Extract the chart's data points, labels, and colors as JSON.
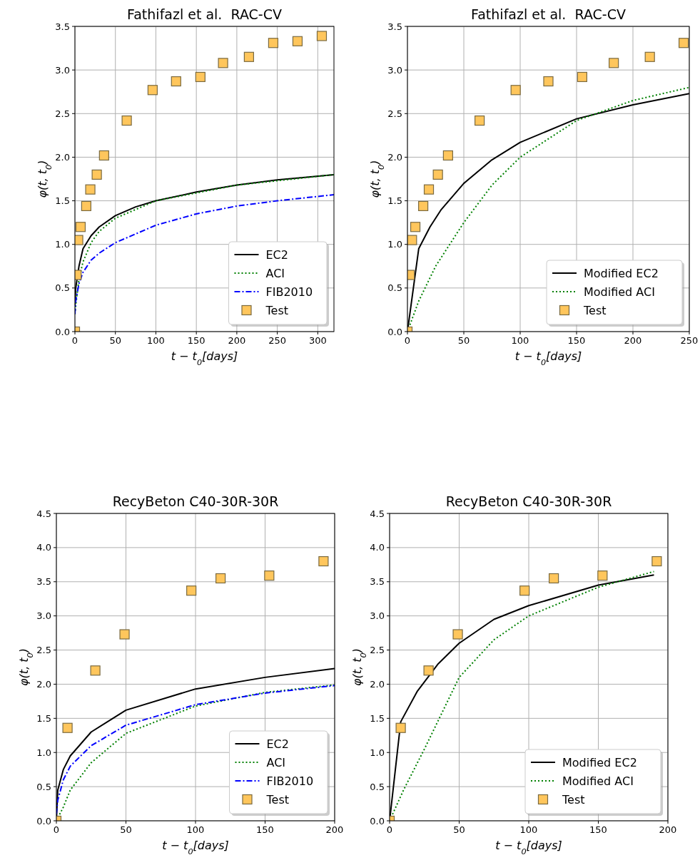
{
  "chart_data": [
    {
      "type": "line",
      "title": "Fathifazl et al.  RAC-CV",
      "xlabel": "t − t$_{0}$[days]",
      "ylabel": "φ(t, t$_{0}$)",
      "xlim": [
        0,
        320
      ],
      "xticks": [
        0,
        50,
        100,
        150,
        200,
        250,
        300
      ],
      "ylim": [
        0,
        3.5
      ],
      "yticks": [
        {
          "value": 0,
          "label": "0.0"
        },
        {
          "value": 0.5,
          "label": "0.5"
        },
        {
          "value": 1,
          "label": "1.0"
        },
        {
          "value": 1.5,
          "label": "1.5"
        },
        {
          "value": 2,
          "label": "2.0"
        },
        {
          "value": 2.5,
          "label": "2.5"
        },
        {
          "value": 3,
          "label": "3.0"
        },
        {
          "value": 3.5,
          "label": "3.5"
        }
      ],
      "grid": true,
      "legend": "bottom right",
      "series": [
        {
          "name": "EC2",
          "type": "line",
          "color": "#000000",
          "line_style": "solid",
          "marker": "none",
          "x": [
            0,
            1,
            5,
            10,
            20,
            30,
            50,
            75,
            100,
            150,
            200,
            250,
            320
          ],
          "values": [
            0.3,
            0.5,
            0.75,
            0.95,
            1.1,
            1.2,
            1.33,
            1.43,
            1.5,
            1.6,
            1.68,
            1.74,
            1.8
          ]
        },
        {
          "name": "ACI",
          "type": "line",
          "color": "#008000",
          "line_style": "dotted",
          "marker": "none",
          "x": [
            0,
            1,
            5,
            10,
            20,
            30,
            50,
            100,
            200,
            320
          ],
          "values": [
            0.2,
            0.3,
            0.6,
            0.8,
            1.02,
            1.15,
            1.3,
            1.5,
            1.68,
            1.8
          ]
        },
        {
          "name": "FIB2010",
          "type": "line",
          "color": "#0000ff",
          "line_style": "dashdot",
          "marker": "none",
          "x": [
            0,
            1,
            5,
            10,
            20,
            30,
            50,
            100,
            150,
            200,
            250,
            320
          ],
          "values": [
            0.2,
            0.35,
            0.55,
            0.68,
            0.82,
            0.9,
            1.02,
            1.22,
            1.35,
            1.44,
            1.5,
            1.57
          ]
        },
        {
          "name": "Test",
          "type": "scatter",
          "color": "#ffc65c",
          "marker": "square",
          "x": [
            0,
            2,
            4,
            7,
            14,
            19,
            27,
            36,
            64,
            96,
            125,
            155,
            183,
            215,
            245,
            275,
            305
          ],
          "values": [
            0,
            0.65,
            1.05,
            1.2,
            1.44,
            1.63,
            1.8,
            2.02,
            2.42,
            2.77,
            2.87,
            2.92,
            3.08,
            3.15,
            3.31,
            3.33,
            3.39
          ]
        }
      ]
    },
    {
      "type": "line",
      "title": "Fathifazl et al.  RAC-CV",
      "xlabel": "t − t$_{0}$[days]",
      "ylabel": "φ(t, t$_{0}$)",
      "xlim": [
        0,
        250
      ],
      "xticks": [
        0,
        50,
        100,
        150,
        200,
        250
      ],
      "ylim": [
        0,
        3.5
      ],
      "yticks": [
        {
          "value": 0,
          "label": "0.0"
        },
        {
          "value": 0.5,
          "label": "0.5"
        },
        {
          "value": 1,
          "label": "1.0"
        },
        {
          "value": 1.5,
          "label": "1.5"
        },
        {
          "value": 2,
          "label": "2.0"
        },
        {
          "value": 2.5,
          "label": "2.5"
        },
        {
          "value": 3,
          "label": "3.0"
        },
        {
          "value": 3.5,
          "label": "3.5"
        }
      ],
      "grid": true,
      "legend": "bottom right",
      "series": [
        {
          "name": "Modified EC2",
          "type": "line",
          "color": "#000000",
          "line_style": "solid",
          "marker": "none",
          "x": [
            0,
            10,
            20,
            30,
            50,
            75,
            100,
            150,
            200,
            250
          ],
          "values": [
            0,
            0.95,
            1.2,
            1.4,
            1.7,
            1.97,
            2.17,
            2.44,
            2.6,
            2.73
          ]
        },
        {
          "name": "Modified ACI",
          "type": "line",
          "color": "#008000",
          "line_style": "dotted",
          "marker": "none",
          "x": [
            0,
            10,
            25,
            50,
            75,
            100,
            150,
            200,
            250
          ],
          "values": [
            0,
            0.35,
            0.75,
            1.25,
            1.68,
            2.0,
            2.42,
            2.65,
            2.8
          ]
        },
        {
          "name": "Test",
          "type": "scatter",
          "color": "#ffc65c",
          "marker": "square",
          "x": [
            0,
            2,
            4,
            7,
            14,
            19,
            27,
            36,
            64,
            96,
            125,
            155,
            183,
            215,
            245
          ],
          "values": [
            0,
            0.65,
            1.05,
            1.2,
            1.44,
            1.63,
            1.8,
            2.02,
            2.42,
            2.77,
            2.87,
            2.92,
            3.08,
            3.15,
            3.31
          ]
        }
      ]
    },
    {
      "type": "line",
      "title": "RecyBeton C40-30R-30R",
      "xlabel": "t − t$_{0}$[days]",
      "ylabel": "φ(t, t$_{0}$)",
      "xlim": [
        0,
        200
      ],
      "xticks": [
        0,
        50,
        100,
        150,
        200
      ],
      "ylim": [
        0,
        4.5
      ],
      "yticks": [
        {
          "value": 0,
          "label": "0.0"
        },
        {
          "value": 0.5,
          "label": "0.5"
        },
        {
          "value": 1,
          "label": "1.0"
        },
        {
          "value": 1.5,
          "label": "1.5"
        },
        {
          "value": 2,
          "label": "2.0"
        },
        {
          "value": 2.5,
          "label": "2.5"
        },
        {
          "value": 3,
          "label": "3.0"
        },
        {
          "value": 3.5,
          "label": "3.5"
        },
        {
          "value": 4,
          "label": "4.0"
        },
        {
          "value": 4.5,
          "label": "4.5"
        }
      ],
      "grid": true,
      "legend": "bottom right",
      "series": [
        {
          "name": "EC2",
          "type": "line",
          "color": "#000000",
          "line_style": "solid",
          "marker": "none",
          "x": [
            0,
            1,
            5,
            10,
            25,
            50,
            100,
            150,
            200
          ],
          "values": [
            0,
            0.45,
            0.75,
            0.95,
            1.3,
            1.62,
            1.93,
            2.1,
            2.23
          ]
        },
        {
          "name": "ACI",
          "type": "line",
          "color": "#008000",
          "line_style": "dotted",
          "marker": "none",
          "x": [
            0,
            5,
            10,
            25,
            50,
            100,
            150,
            200
          ],
          "values": [
            0,
            0.2,
            0.45,
            0.85,
            1.28,
            1.68,
            1.88,
            1.99
          ]
        },
        {
          "name": "FIB2010",
          "type": "line",
          "color": "#0000ff",
          "line_style": "dashdot",
          "marker": "none",
          "x": [
            0,
            1,
            5,
            10,
            25,
            50,
            100,
            150,
            200
          ],
          "values": [
            0.1,
            0.3,
            0.6,
            0.8,
            1.1,
            1.4,
            1.7,
            1.87,
            1.98
          ]
        },
        {
          "name": "Test",
          "type": "scatter",
          "color": "#ffc65c",
          "marker": "square",
          "x": [
            0,
            8,
            28,
            49,
            97,
            118,
            153,
            192
          ],
          "values": [
            0,
            1.36,
            2.2,
            2.73,
            3.37,
            3.55,
            3.59,
            3.8
          ]
        }
      ]
    },
    {
      "type": "line",
      "title": "RecyBeton C40-30R-30R",
      "xlabel": "t − t$_{0}$[days]",
      "ylabel": "φ(t, t$_{0}$)",
      "xlim": [
        0,
        200
      ],
      "xticks": [
        0,
        50,
        100,
        150,
        200
      ],
      "ylim": [
        0,
        4.5
      ],
      "yticks": [
        {
          "value": 0,
          "label": "0.0"
        },
        {
          "value": 0.5,
          "label": "0.5"
        },
        {
          "value": 1,
          "label": "1.0"
        },
        {
          "value": 1.5,
          "label": "1.5"
        },
        {
          "value": 2,
          "label": "2.0"
        },
        {
          "value": 2.5,
          "label": "2.5"
        },
        {
          "value": 3,
          "label": "3.0"
        },
        {
          "value": 3.5,
          "label": "3.5"
        },
        {
          "value": 4,
          "label": "4.0"
        },
        {
          "value": 4.5,
          "label": "4.5"
        }
      ],
      "grid": true,
      "legend": "bottom right",
      "series": [
        {
          "name": "Modified EC2",
          "type": "line",
          "color": "#000000",
          "line_style": "solid",
          "marker": "none",
          "x": [
            0,
            8,
            20,
            35,
            50,
            75,
            100,
            150,
            190
          ],
          "values": [
            0,
            1.45,
            1.9,
            2.3,
            2.6,
            2.95,
            3.15,
            3.45,
            3.6
          ]
        },
        {
          "name": "Modified ACI",
          "type": "line",
          "color": "#008000",
          "line_style": "dotted",
          "marker": "none",
          "x": [
            0,
            10,
            25,
            50,
            75,
            100,
            150,
            190
          ],
          "values": [
            0,
            0.45,
            1.05,
            2.1,
            2.65,
            3.0,
            3.42,
            3.65
          ]
        },
        {
          "name": "Test",
          "type": "scatter",
          "color": "#ffc65c",
          "marker": "square",
          "x": [
            0,
            8,
            28,
            49,
            97,
            118,
            153,
            192
          ],
          "values": [
            0,
            1.36,
            2.2,
            2.73,
            3.37,
            3.55,
            3.59,
            3.8
          ]
        }
      ]
    }
  ]
}
